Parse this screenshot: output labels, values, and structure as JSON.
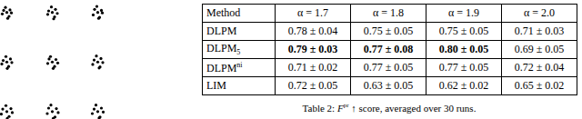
{
  "chart_data": {
    "type": "scatter",
    "color": "#000000",
    "tick_labels": false,
    "xlim": [
      -1.15,
      1.15
    ],
    "ylim": [
      -1.15,
      1.25
    ],
    "points": [
      [
        -1,
        1
      ],
      [
        -0.93,
        1.05
      ],
      [
        -1.07,
        1.04
      ],
      [
        -0.95,
        0.92
      ],
      [
        -1.1,
        0.97
      ],
      [
        -0.9,
        0.99
      ],
      [
        -1.03,
        1.1
      ],
      [
        -0.98,
        0.88
      ],
      [
        0,
        1
      ],
      [
        0.07,
        1.06
      ],
      [
        -0.08,
        1.03
      ],
      [
        0.05,
        0.91
      ],
      [
        -0.1,
        0.96
      ],
      [
        0.11,
        0.98
      ],
      [
        -0.02,
        1.11
      ],
      [
        0.03,
        0.87
      ],
      [
        1,
        1
      ],
      [
        1.08,
        1.04
      ],
      [
        0.93,
        1.06
      ],
      [
        1.04,
        0.9
      ],
      [
        0.9,
        0.95
      ],
      [
        1.1,
        0.99
      ],
      [
        0.98,
        1.12
      ],
      [
        1.02,
        0.88
      ],
      [
        -1,
        0
      ],
      [
        -0.92,
        0.06
      ],
      [
        -1.08,
        0.03
      ],
      [
        -0.96,
        -0.09
      ],
      [
        -1.11,
        -0.04
      ],
      [
        -0.89,
        -0.01
      ],
      [
        -1.02,
        0.11
      ],
      [
        -0.99,
        -0.13
      ],
      [
        0,
        0
      ],
      [
        0.08,
        0.05
      ],
      [
        -0.07,
        0.06
      ],
      [
        0.05,
        -0.09
      ],
      [
        -0.1,
        -0.03
      ],
      [
        0.12,
        -0.02
      ],
      [
        -0.04,
        0.11
      ],
      [
        0.02,
        -0.13
      ],
      [
        1,
        0
      ],
      [
        1.07,
        0.07
      ],
      [
        0.92,
        0.04
      ],
      [
        1.05,
        -0.1
      ],
      [
        0.89,
        -0.05
      ],
      [
        1.11,
        -0.01
      ],
      [
        0.97,
        0.12
      ],
      [
        1.03,
        -0.12
      ],
      [
        -1,
        -1
      ],
      [
        -0.91,
        -0.94
      ],
      [
        -1.09,
        -0.95
      ],
      [
        -0.95,
        -1.1
      ],
      [
        -1.12,
        -1.05
      ],
      [
        -0.88,
        -1.02
      ],
      [
        -1.02,
        -0.88
      ],
      [
        -0.99,
        -1.14
      ],
      [
        0,
        -1
      ],
      [
        0.09,
        -0.94
      ],
      [
        -0.08,
        -0.93
      ],
      [
        0.06,
        -1.11
      ],
      [
        -0.11,
        -1.04
      ],
      [
        0.13,
        -1.02
      ],
      [
        -0.03,
        -0.87
      ],
      [
        0.02,
        -1.14
      ],
      [
        1,
        -1
      ],
      [
        1.08,
        -0.93
      ],
      [
        0.92,
        -0.95
      ],
      [
        1.05,
        -1.11
      ],
      [
        0.88,
        -1.04
      ],
      [
        1.12,
        -1.01
      ],
      [
        0.96,
        -0.87
      ],
      [
        1.03,
        -1.13
      ]
    ]
  },
  "table": {
    "header": [
      "Method",
      "α = 1.7",
      "α = 1.8",
      "α = 1.9",
      "α = 2.0"
    ],
    "rows": [
      {
        "method": {
          "text": "DLPM"
        },
        "cells": [
          {
            "text": "0.78 ± 0.04",
            "bold": false
          },
          {
            "text": "0.75 ± 0.05",
            "bold": false
          },
          {
            "text": "0.75 ± 0.05",
            "bold": false
          },
          {
            "text": "0.71 ± 0.03",
            "bold": false
          }
        ]
      },
      {
        "method": {
          "text": "DLPM",
          "sub": "5"
        },
        "cells": [
          {
            "text": "0.79 ± 0.03",
            "bold": true
          },
          {
            "text": "0.77 ± 0.08",
            "bold": true
          },
          {
            "text": "0.80 ± 0.05",
            "bold": true
          },
          {
            "text": "0.69 ± 0.05",
            "bold": false
          }
        ]
      },
      {
        "method": {
          "text": "DLPM",
          "sup": "ni"
        },
        "cells": [
          {
            "text": "0.71 ± 0.02",
            "bold": false
          },
          {
            "text": "0.77 ± 0.05",
            "bold": false
          },
          {
            "text": "0.77 ± 0.05",
            "bold": false
          },
          {
            "text": "0.72 ± 0.04",
            "bold": false
          }
        ]
      },
      {
        "method": {
          "text": "LIM"
        },
        "cells": [
          {
            "text": "0.72 ± 0.05",
            "bold": false
          },
          {
            "text": "0.63 ± 0.05",
            "bold": false
          },
          {
            "text": "0.62 ± 0.02",
            "bold": false
          },
          {
            "text": "0.65 ± 0.02",
            "bold": false
          }
        ]
      }
    ],
    "caption": {
      "label": "Table 2:",
      "symbol": "F",
      "superscript": "pr",
      "rest": "↑ score, averaged over 30 runs."
    }
  }
}
